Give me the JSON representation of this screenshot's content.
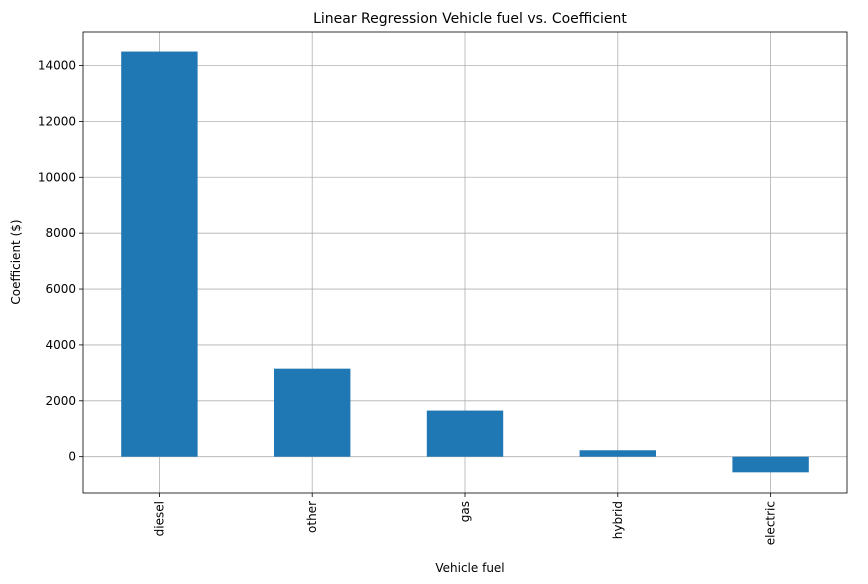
{
  "chart_data": {
    "type": "bar",
    "title": "Linear Regression Vehicle fuel vs. Coefficient",
    "xlabel": "Vehicle fuel",
    "ylabel": "Coefficient ($)",
    "categories": [
      "diesel",
      "other",
      "gas",
      "hybrid",
      "electric"
    ],
    "values": [
      14500,
      3150,
      1650,
      230,
      -560
    ],
    "ylim": [
      -1300,
      15200
    ],
    "yticks": [
      0,
      2000,
      4000,
      6000,
      8000,
      10000,
      12000,
      14000
    ],
    "ytick_labels": [
      "0",
      "2000",
      "4000",
      "6000",
      "8000",
      "10000",
      "12000",
      "14000"
    ],
    "grid": true,
    "legend": "none",
    "bar_color": "#1f77b4"
  }
}
